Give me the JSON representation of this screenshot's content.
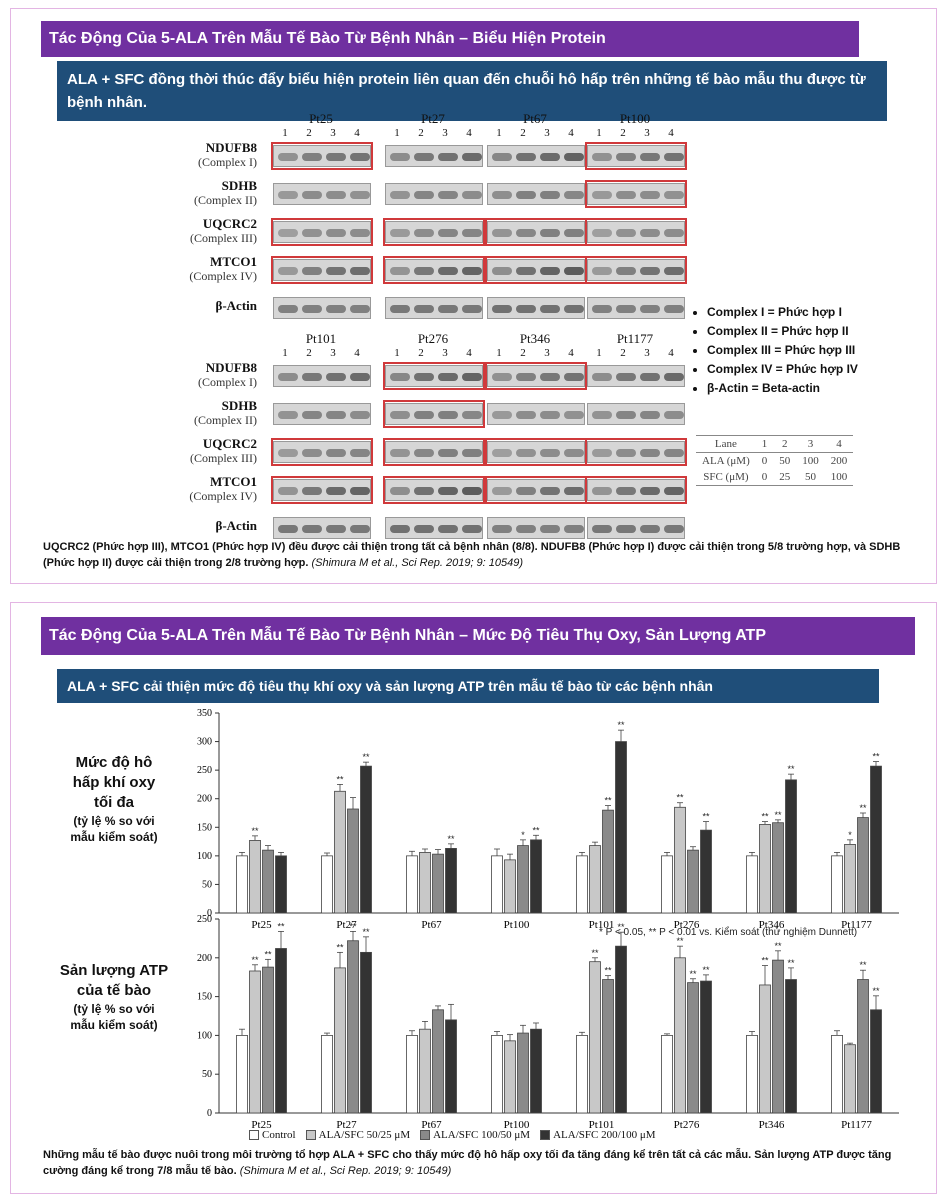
{
  "panel1": {
    "title": "Tác Động Của 5-ALA Trên Mẫu Tế Bào Từ Bệnh Nhân – Biểu Hiện Protein",
    "subtitle": "ALA + SFC đồng thời thúc đẩy biểu hiện protein liên quan đến chuỗi hô hấp trên những tế bào mẫu thu được từ bệnh nhân.",
    "top_patients": [
      "Pt25",
      "Pt27",
      "Pt67",
      "Pt100"
    ],
    "bottom_patients": [
      "Pt101",
      "Pt276",
      "Pt346",
      "Pt1177"
    ],
    "lanes": [
      "1",
      "2",
      "3",
      "4"
    ],
    "proteins": [
      {
        "name": "NDUFB8",
        "complex": "(Complex I)"
      },
      {
        "name": "SDHB",
        "complex": "(Complex II)"
      },
      {
        "name": "UQCRC2",
        "complex": "(Complex III)"
      },
      {
        "name": "MTCO1",
        "complex": "(Complex IV)"
      },
      {
        "name": "β-Actin",
        "complex": ""
      }
    ],
    "legend": [
      "Complex I = Phức hợp I",
      "Complex II = Phức hợp II",
      "Complex III = Phức hợp III",
      "Complex IV = Phức hợp IV",
      "β-Actin = Beta-actin"
    ],
    "lane_table": {
      "rows": [
        [
          "Lane",
          "1",
          "2",
          "3",
          "4"
        ],
        [
          "ALA (μM)",
          "0",
          "50",
          "100",
          "200"
        ],
        [
          "SFC (μM)",
          "0",
          "25",
          "50",
          "100"
        ]
      ]
    },
    "caption": "UQCRC2 (Phức hợp III), MTCO1 (Phức hợp IV) đều được cải thiện trong tất cả bệnh nhân (8/8). NDUFB8 (Phức hợp I) được cải thiện trong 5/8 trường hợp, và SDHB (Phức hợp II) được cải thiện trong 2/8 trường hợp.",
    "citation": "(Shimura M et al., Sci Rep. 2019; 9: 10549)"
  },
  "panel2": {
    "title": "Tác Động Của 5-ALA Trên Mẫu Tế Bào Từ Bệnh Nhân – Mức Độ Tiêu Thụ Oxy, Sản Lượng ATP",
    "subtitle": "ALA + SFC cải thiện mức độ tiêu thụ khí oxy và sản lượng ATP trên mẫu tế bào từ các bệnh nhân",
    "chart1_label": {
      "line1": "Mức độ hô",
      "line2": "hấp khí oxy",
      "line3": "tối đa",
      "line4": "(tỷ lệ % so với",
      "line5": "mẫu kiểm soát)"
    },
    "chart2_label": {
      "line1": "Sản lượng ATP",
      "line2": "của tế bào",
      "line3": "(tỷ lệ % so với",
      "line4": "mẫu kiểm soát)"
    },
    "sig_note": "* P < 0.05, ** P < 0.01 vs. Kiểm soát (thử nghiệm Dunnett)",
    "legend": [
      "Control",
      "ALA/SFC 50/25 μM",
      "ALA/SFC 100/50 μM",
      "ALA/SFC 200/100 μM"
    ],
    "caption": "Những mẫu tế bào được nuôi trong môi trường tổ hợp ALA + SFC cho thấy mức độ hô hấp oxy tối đa tăng đáng kể trên tất cả các mẫu. Sản lượng ATP được tăng cường đáng kể trong 7/8 mẫu tế bào.",
    "citation": "(Shimura M et al., Sci Rep. 2019; 9: 10549)"
  },
  "colors": {
    "title_bg": "#7030a0",
    "subtitle_bg": "#1f4e79",
    "highlight": "#d0393b",
    "series": [
      "#ffffff",
      "#c8c8c8",
      "#8a8a8a",
      "#333333"
    ]
  },
  "chart_data": [
    {
      "type": "bar",
      "categories": [
        "Pt25",
        "Pt27",
        "Pt67",
        "Pt100",
        "Pt101",
        "Pt276",
        "Pt346",
        "Pt1177"
      ],
      "ylim": [
        0,
        350
      ],
      "yticks": [
        "0",
        "50",
        "100",
        "150",
        "200",
        "250",
        "300",
        "350"
      ],
      "series": [
        {
          "name": "Control",
          "values": [
            100,
            100,
            100,
            100,
            100,
            100,
            100,
            100
          ],
          "err": [
            6,
            5,
            8,
            12,
            6,
            6,
            6,
            6
          ],
          "sig": [
            "",
            "",
            "",
            "",
            "",
            "",
            "",
            ""
          ]
        },
        {
          "name": "ALA/SFC 50/25 μM",
          "values": [
            127,
            213,
            106,
            93,
            118,
            185,
            155,
            120
          ],
          "err": [
            8,
            12,
            6,
            10,
            6,
            8,
            5,
            8
          ],
          "sig": [
            "**",
            "**",
            "",
            "",
            "",
            "**",
            "**",
            "*"
          ]
        },
        {
          "name": "ALA/SFC 100/50 μM",
          "values": [
            110,
            182,
            103,
            118,
            180,
            110,
            158,
            167
          ],
          "err": [
            8,
            20,
            8,
            10,
            8,
            6,
            5,
            8
          ],
          "sig": [
            "",
            "",
            "",
            "*",
            "**",
            "",
            "**",
            "**"
          ]
        },
        {
          "name": "ALA/SFC 200/100 μM",
          "values": [
            100,
            257,
            113,
            128,
            300,
            145,
            233,
            257
          ],
          "err": [
            6,
            7,
            8,
            8,
            20,
            15,
            10,
            8
          ],
          "sig": [
            "",
            "**",
            "**",
            "**",
            "**",
            "**",
            "**",
            "**"
          ]
        }
      ]
    },
    {
      "type": "bar",
      "categories": [
        "Pt25",
        "Pt27",
        "Pt67",
        "Pt100",
        "Pt101",
        "Pt276",
        "Pt346",
        "Pt1177"
      ],
      "ylim": [
        0,
        250
      ],
      "yticks": [
        "0",
        "50",
        "100",
        "150",
        "200",
        "250"
      ],
      "series": [
        {
          "name": "Control",
          "values": [
            100,
            100,
            100,
            100,
            100,
            100,
            100,
            100
          ],
          "err": [
            8,
            3,
            6,
            5,
            4,
            2,
            5,
            6
          ],
          "sig": [
            "",
            "",
            "",
            "",
            "",
            "",
            "",
            ""
          ]
        },
        {
          "name": "ALA/SFC 50/25 μM",
          "values": [
            183,
            187,
            108,
            93,
            195,
            200,
            165,
            88
          ],
          "err": [
            8,
            20,
            10,
            8,
            5,
            15,
            25,
            2
          ],
          "sig": [
            "**",
            "**",
            "",
            "",
            "**",
            "**",
            "**",
            ""
          ]
        },
        {
          "name": "ALA/SFC 100/50 μM",
          "values": [
            188,
            222,
            133,
            103,
            172,
            168,
            197,
            172
          ],
          "err": [
            10,
            12,
            5,
            10,
            5,
            5,
            12,
            12
          ],
          "sig": [
            "**",
            "**",
            "",
            "",
            "**",
            "**",
            "**",
            "**"
          ]
        },
        {
          "name": "ALA/SFC 200/100 μM",
          "values": [
            212,
            207,
            120,
            108,
            215,
            170,
            172,
            133
          ],
          "err": [
            22,
            20,
            20,
            8,
            18,
            8,
            15,
            18
          ],
          "sig": [
            "**",
            "**",
            "",
            "",
            "**",
            "**",
            "**",
            "**"
          ]
        }
      ]
    }
  ]
}
